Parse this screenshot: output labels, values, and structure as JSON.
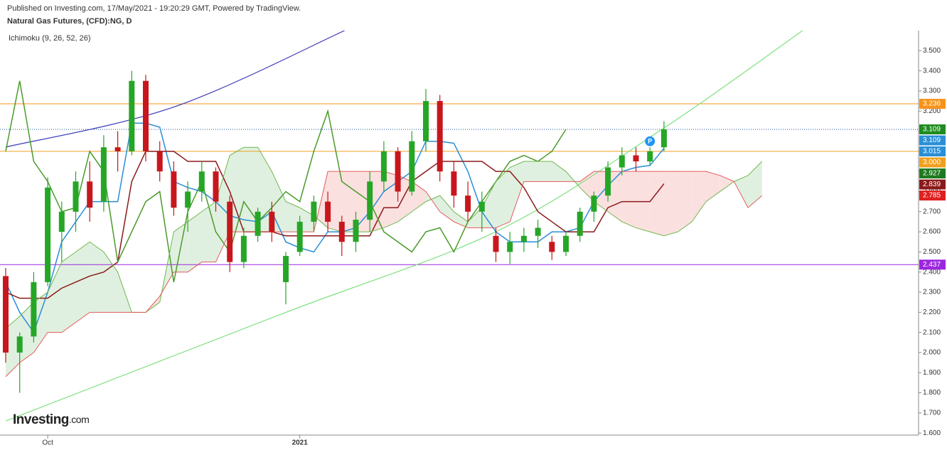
{
  "header": "Published on Investing.com, 17/May/2021 - 19:20:29 GMT, Powered by TradingView.",
  "logo": {
    "name": "Investing",
    "suffix": ".com"
  },
  "chart_data": {
    "type": "candlestick",
    "title": "Natural Gas Futures, (CFD):NG, D",
    "indicator": "Ichimoku (9, 26, 52, 26)",
    "marker": {
      "label": "P",
      "x": 46,
      "y": 3.05
    },
    "ylim": [
      1.59,
      3.6
    ],
    "yticks": [
      {
        "value": 1.6,
        "label": "1.600"
      },
      {
        "value": 1.7,
        "label": "1.700"
      },
      {
        "value": 1.8,
        "label": "1.800"
      },
      {
        "value": 1.9,
        "label": "1.900"
      },
      {
        "value": 2.0,
        "label": "2.000"
      },
      {
        "value": 2.1,
        "label": "2.100"
      },
      {
        "value": 2.2,
        "label": "2.200"
      },
      {
        "value": 2.3,
        "label": "2.300"
      },
      {
        "value": 2.4,
        "label": "2.400"
      },
      {
        "value": 2.5,
        "label": "2.500"
      },
      {
        "value": 2.6,
        "label": "2.600"
      },
      {
        "value": 2.7,
        "label": "2.700"
      },
      {
        "value": 2.8,
        "label": "2.800"
      },
      {
        "value": 2.9,
        "label": "2.900"
      },
      {
        "value": 3.0,
        "label": "3.000"
      },
      {
        "value": 3.1,
        "label": "3.100"
      },
      {
        "value": 3.2,
        "label": "3.200"
      },
      {
        "value": 3.3,
        "label": "3.300"
      },
      {
        "value": 3.4,
        "label": "3.400"
      },
      {
        "value": 3.5,
        "label": "3.500"
      }
    ],
    "xlim": [
      -0.4,
      65
    ],
    "xticks": [
      {
        "value": 3,
        "label": "Oct"
      },
      {
        "value": 21,
        "label": "2021"
      }
    ],
    "up_color": "#26a626",
    "down_color": "#c8161d",
    "candles": [
      {
        "open": 2.38,
        "high": 2.42,
        "low": 1.95,
        "close": 2.0
      },
      {
        "open": 2.0,
        "high": 2.1,
        "low": 1.8,
        "close": 2.08
      },
      {
        "open": 2.08,
        "high": 2.4,
        "low": 2.05,
        "close": 2.35
      },
      {
        "open": 2.35,
        "high": 2.87,
        "low": 2.33,
        "close": 2.82
      },
      {
        "open": 2.6,
        "high": 2.75,
        "low": 2.45,
        "close": 2.7
      },
      {
        "open": 2.7,
        "high": 2.9,
        "low": 2.6,
        "close": 2.85
      },
      {
        "open": 2.85,
        "high": 2.95,
        "low": 2.65,
        "close": 2.72
      },
      {
        "open": 2.75,
        "high": 3.08,
        "low": 2.7,
        "close": 3.02
      },
      {
        "open": 3.02,
        "high": 3.1,
        "low": 2.9,
        "close": 3.0
      },
      {
        "open": 3.0,
        "high": 3.4,
        "low": 2.98,
        "close": 3.35
      },
      {
        "open": 3.35,
        "high": 3.38,
        "low": 2.95,
        "close": 3.0
      },
      {
        "open": 3.0,
        "high": 3.05,
        "low": 2.85,
        "close": 2.9
      },
      {
        "open": 2.9,
        "high": 2.95,
        "low": 2.68,
        "close": 2.72
      },
      {
        "open": 2.72,
        "high": 2.85,
        "low": 2.6,
        "close": 2.8
      },
      {
        "open": 2.8,
        "high": 2.95,
        "low": 2.75,
        "close": 2.9
      },
      {
        "open": 2.9,
        "high": 2.92,
        "low": 2.7,
        "close": 2.75
      },
      {
        "open": 2.75,
        "high": 2.78,
        "low": 2.4,
        "close": 2.45
      },
      {
        "open": 2.45,
        "high": 2.62,
        "low": 2.42,
        "close": 2.58
      },
      {
        "open": 2.58,
        "high": 2.72,
        "low": 2.55,
        "close": 2.7
      },
      {
        "open": 2.7,
        "high": 2.75,
        "low": 2.55,
        "close": 2.6
      },
      {
        "open": 2.35,
        "high": 2.5,
        "low": 2.24,
        "close": 2.48
      },
      {
        "open": 2.5,
        "high": 2.68,
        "low": 2.48,
        "close": 2.65
      },
      {
        "open": 2.65,
        "high": 2.78,
        "low": 2.6,
        "close": 2.75
      },
      {
        "open": 2.75,
        "high": 2.8,
        "low": 2.6,
        "close": 2.65
      },
      {
        "open": 2.65,
        "high": 2.68,
        "low": 2.48,
        "close": 2.55
      },
      {
        "open": 2.55,
        "high": 2.7,
        "low": 2.5,
        "close": 2.66
      },
      {
        "open": 2.66,
        "high": 2.9,
        "low": 2.6,
        "close": 2.85
      },
      {
        "open": 2.85,
        "high": 3.05,
        "low": 2.8,
        "close": 3.0
      },
      {
        "open": 3.0,
        "high": 3.02,
        "low": 2.75,
        "close": 2.8
      },
      {
        "open": 2.8,
        "high": 3.1,
        "low": 2.78,
        "close": 3.05
      },
      {
        "open": 3.05,
        "high": 3.31,
        "low": 3.0,
        "close": 3.25
      },
      {
        "open": 3.25,
        "high": 3.28,
        "low": 2.85,
        "close": 2.9
      },
      {
        "open": 2.9,
        "high": 2.95,
        "low": 2.72,
        "close": 2.78
      },
      {
        "open": 2.78,
        "high": 2.85,
        "low": 2.65,
        "close": 2.7
      },
      {
        "open": 2.7,
        "high": 2.8,
        "low": 2.6,
        "close": 2.75
      },
      {
        "open": 2.58,
        "high": 2.62,
        "low": 2.45,
        "close": 2.5
      },
      {
        "open": 2.5,
        "high": 2.6,
        "low": 2.44,
        "close": 2.55
      },
      {
        "open": 2.55,
        "high": 2.62,
        "low": 2.5,
        "close": 2.58
      },
      {
        "open": 2.58,
        "high": 2.66,
        "low": 2.52,
        "close": 2.62
      },
      {
        "open": 2.55,
        "high": 2.58,
        "low": 2.46,
        "close": 2.5
      },
      {
        "open": 2.5,
        "high": 2.6,
        "low": 2.48,
        "close": 2.58
      },
      {
        "open": 2.58,
        "high": 2.72,
        "low": 2.55,
        "close": 2.7
      },
      {
        "open": 2.7,
        "high": 2.8,
        "low": 2.65,
        "close": 2.78
      },
      {
        "open": 2.78,
        "high": 2.95,
        "low": 2.75,
        "close": 2.92
      },
      {
        "open": 2.92,
        "high": 3.02,
        "low": 2.88,
        "close": 2.98
      },
      {
        "open": 2.98,
        "high": 3.02,
        "low": 2.9,
        "close": 2.95
      },
      {
        "open": 2.95,
        "high": 3.02,
        "low": 2.93,
        "close": 3.0
      },
      {
        "open": 3.02,
        "high": 3.15,
        "low": 3.0,
        "close": 3.109
      }
    ],
    "series": [
      {
        "name": "Conversion Line",
        "color": "#2a8fd6",
        "values": [
          2.35,
          2.2,
          2.1,
          2.3,
          2.55,
          2.65,
          2.75,
          2.75,
          2.75,
          3.14,
          3.14,
          3.12,
          2.85,
          2.82,
          2.8,
          2.75,
          2.68,
          2.66,
          2.65,
          2.7,
          2.55,
          2.52,
          2.5,
          2.6,
          2.6,
          2.62,
          2.7,
          2.8,
          2.85,
          2.9,
          3.05,
          3.05,
          3.04,
          2.9,
          2.7,
          2.6,
          2.55,
          2.55,
          2.55,
          2.6,
          2.6,
          2.62,
          2.75,
          2.83,
          2.9,
          2.92,
          2.93,
          3.015
        ]
      },
      {
        "name": "Base Line",
        "color": "#8b1a1a",
        "values": [
          2.3,
          2.27,
          2.27,
          2.27,
          2.32,
          2.35,
          2.38,
          2.4,
          2.45,
          2.85,
          3.0,
          3.0,
          3.0,
          2.95,
          2.95,
          2.95,
          2.8,
          2.6,
          2.6,
          2.6,
          2.58,
          2.58,
          2.58,
          2.58,
          2.58,
          2.58,
          2.58,
          2.72,
          2.72,
          2.85,
          2.9,
          2.95,
          2.95,
          2.95,
          2.95,
          2.9,
          2.9,
          2.82,
          2.7,
          2.65,
          2.6,
          2.6,
          2.6,
          2.72,
          2.75,
          2.75,
          2.75,
          2.839
        ]
      },
      {
        "name": "Lagging Span",
        "color": "#4a9a2a",
        "values": [
          3.0,
          3.35,
          2.95,
          2.85,
          2.7,
          2.72,
          3.0,
          2.9,
          2.45,
          2.6,
          2.75,
          2.8,
          2.35,
          2.7,
          2.85,
          2.6,
          2.5,
          2.75,
          2.65,
          2.72,
          2.8,
          2.75,
          3.0,
          3.2,
          2.85,
          2.8,
          2.75,
          2.6,
          2.55,
          2.5,
          2.6,
          2.62,
          2.5,
          2.65,
          2.75,
          2.85,
          2.95,
          2.98,
          2.95,
          3.0,
          3.109
        ]
      },
      {
        "name": "Lead 1",
        "color": "#6fb84f",
        "values": [
          2.12,
          2.18,
          2.25,
          2.3,
          2.45,
          2.5,
          2.55,
          2.5,
          2.4,
          2.2,
          2.2,
          2.25,
          2.6,
          2.65,
          2.7,
          2.75,
          2.98,
          3.02,
          3.02,
          2.9,
          2.75,
          2.72,
          2.68,
          2.62,
          2.6,
          2.6,
          2.6,
          2.62,
          2.65,
          2.7,
          2.75,
          2.78,
          2.7,
          2.65,
          2.72,
          2.85,
          2.92,
          2.95,
          2.95,
          2.95,
          2.9,
          2.82,
          2.75,
          2.7,
          2.65,
          2.62,
          2.6,
          2.58,
          2.6,
          2.65,
          2.75,
          2.8,
          2.85,
          2.88,
          2.95
        ]
      },
      {
        "name": "Lead 2",
        "color": "#e35b5b",
        "values": [
          1.88,
          1.95,
          2.0,
          2.1,
          2.1,
          2.15,
          2.2,
          2.2,
          2.2,
          2.2,
          2.2,
          2.28,
          2.4,
          2.4,
          2.45,
          2.45,
          2.6,
          2.6,
          2.6,
          2.6,
          2.6,
          2.6,
          2.6,
          2.9,
          2.9,
          2.9,
          2.9,
          2.9,
          2.88,
          2.85,
          2.8,
          2.7,
          2.65,
          2.62,
          2.62,
          2.62,
          2.65,
          2.85,
          2.85,
          2.85,
          2.85,
          2.85,
          2.9,
          2.9,
          2.9,
          2.9,
          2.9,
          2.9,
          2.9,
          2.9,
          2.9,
          2.88,
          2.85,
          2.72,
          2.78
        ]
      }
    ],
    "cloud_colors": [
      "#cfe8cf",
      "#f9d0d0"
    ],
    "curves": [
      {
        "color": "#3b3bb8",
        "points": [
          {
            "x": 0,
            "y": 3.021
          },
          {
            "x": 12,
            "y": 3.22
          },
          {
            "x": 24.2,
            "y": 3.6
          }
        ]
      },
      {
        "color": "#7fe07f",
        "points": [
          {
            "x": 0,
            "y": 1.66
          },
          {
            "x": 19.9,
            "y": 2.197
          },
          {
            "x": 35.1,
            "y": 2.604
          },
          {
            "x": 47,
            "y": 3.116
          },
          {
            "x": 56.9,
            "y": 3.6
          }
        ]
      }
    ],
    "price_labels": [
      {
        "value": 3.236,
        "label": "3.236",
        "color": "#f7931a",
        "line": "solid"
      },
      {
        "value": 3.109,
        "label": "3.109",
        "color": "#1f8c1f",
        "line": "dotted",
        "line_color": "#1e50a0"
      },
      {
        "value": 3.109,
        "label": "3.109",
        "color": "#2a8fd6"
      },
      {
        "value": 3.015,
        "label": "3.015",
        "color": "#2a8fd6"
      },
      {
        "value": 3.0,
        "label": "3.000",
        "color": "#f0a020",
        "line": "solid"
      },
      {
        "value": 2.927,
        "label": "2.927",
        "color": "#1f7a1f"
      },
      {
        "value": 2.839,
        "label": "2.839",
        "color": "#8b1a1a"
      },
      {
        "value": 2.785,
        "label": "2.785",
        "color": "#e02020"
      },
      {
        "value": 2.437,
        "label": "2.437",
        "color": "#9c27e0",
        "line": "solid"
      }
    ]
  }
}
